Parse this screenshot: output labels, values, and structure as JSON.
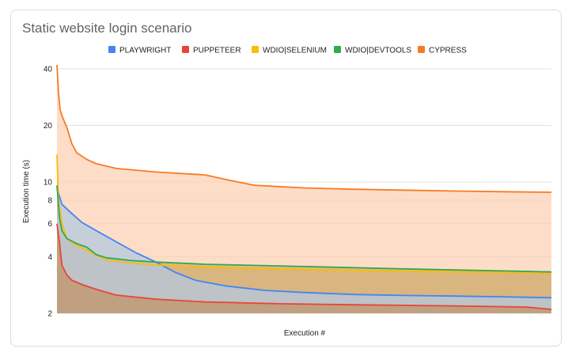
{
  "chart_data": {
    "type": "area",
    "title": "Static website login scenario",
    "xlabel": "Execution #",
    "ylabel": "Execution time (s)",
    "y_scale": "log",
    "ylim": [
      2,
      42
    ],
    "xlim": [
      0,
      1
    ],
    "y_ticks": [
      2,
      4,
      6,
      8,
      10,
      20,
      40
    ],
    "grid": true,
    "legend_position": "top",
    "series": [
      {
        "name": "PLAYWRIGHT",
        "color": "#4285f4",
        "fill": "#b3c8df",
        "points": [
          [
            0,
            9.3
          ],
          [
            0.01,
            7.6
          ],
          [
            0.03,
            6.8
          ],
          [
            0.05,
            6.1
          ],
          [
            0.08,
            5.5
          ],
          [
            0.12,
            4.8
          ],
          [
            0.16,
            4.2
          ],
          [
            0.2,
            3.75
          ],
          [
            0.24,
            3.3
          ],
          [
            0.28,
            3.0
          ],
          [
            0.34,
            2.8
          ],
          [
            0.42,
            2.65
          ],
          [
            0.5,
            2.58
          ],
          [
            0.6,
            2.52
          ],
          [
            0.7,
            2.49
          ],
          [
            0.8,
            2.47
          ],
          [
            0.9,
            2.45
          ],
          [
            1.0,
            2.42
          ]
        ]
      },
      {
        "name": "PUPPETEER",
        "color": "#ea4335",
        "fill": "#c2946a",
        "points": [
          [
            0,
            6.0
          ],
          [
            0.005,
            4.8
          ],
          [
            0.01,
            3.6
          ],
          [
            0.02,
            3.2
          ],
          [
            0.03,
            3.0
          ],
          [
            0.05,
            2.85
          ],
          [
            0.08,
            2.68
          ],
          [
            0.12,
            2.5
          ],
          [
            0.2,
            2.38
          ],
          [
            0.3,
            2.3
          ],
          [
            0.45,
            2.25
          ],
          [
            0.6,
            2.22
          ],
          [
            0.8,
            2.19
          ],
          [
            0.95,
            2.16
          ],
          [
            1.0,
            2.1
          ]
        ]
      },
      {
        "name": "WDIO|SELENIUM",
        "color": "#fbbc04",
        "fill": "#d9b37a",
        "points": [
          [
            0,
            14.0
          ],
          [
            0.003,
            8.0
          ],
          [
            0.01,
            6.0
          ],
          [
            0.02,
            5.0
          ],
          [
            0.04,
            4.6
          ],
          [
            0.07,
            4.2
          ],
          [
            0.1,
            3.85
          ],
          [
            0.15,
            3.7
          ],
          [
            0.2,
            3.62
          ],
          [
            0.3,
            3.52
          ],
          [
            0.5,
            3.42
          ],
          [
            0.7,
            3.35
          ],
          [
            1.0,
            3.28
          ]
        ]
      },
      {
        "name": "WDIO|DEVTOOLS",
        "color": "#34a853",
        "fill": "#c9b07e",
        "points": [
          [
            0,
            9.6
          ],
          [
            0.005,
            6.5
          ],
          [
            0.01,
            5.5
          ],
          [
            0.02,
            5.0
          ],
          [
            0.04,
            4.7
          ],
          [
            0.06,
            4.5
          ],
          [
            0.08,
            4.1
          ],
          [
            0.1,
            3.95
          ],
          [
            0.15,
            3.82
          ],
          [
            0.2,
            3.75
          ],
          [
            0.3,
            3.65
          ],
          [
            0.5,
            3.55
          ],
          [
            0.7,
            3.45
          ],
          [
            1.0,
            3.32
          ]
        ]
      },
      {
        "name": "CYPRESS",
        "color": "#f77b24",
        "fill": "#fcd2b6",
        "points": [
          [
            0,
            42.0
          ],
          [
            0.003,
            30.0
          ],
          [
            0.006,
            24.5
          ],
          [
            0.01,
            22.5
          ],
          [
            0.02,
            19.5
          ],
          [
            0.03,
            16.0
          ],
          [
            0.04,
            14.3
          ],
          [
            0.06,
            13.2
          ],
          [
            0.08,
            12.5
          ],
          [
            0.12,
            11.8
          ],
          [
            0.2,
            11.3
          ],
          [
            0.3,
            10.9
          ],
          [
            0.35,
            10.2
          ],
          [
            0.4,
            9.6
          ],
          [
            0.5,
            9.3
          ],
          [
            0.6,
            9.15
          ],
          [
            0.7,
            9.05
          ],
          [
            0.8,
            8.95
          ],
          [
            0.9,
            8.88
          ],
          [
            1.0,
            8.82
          ]
        ]
      }
    ]
  }
}
